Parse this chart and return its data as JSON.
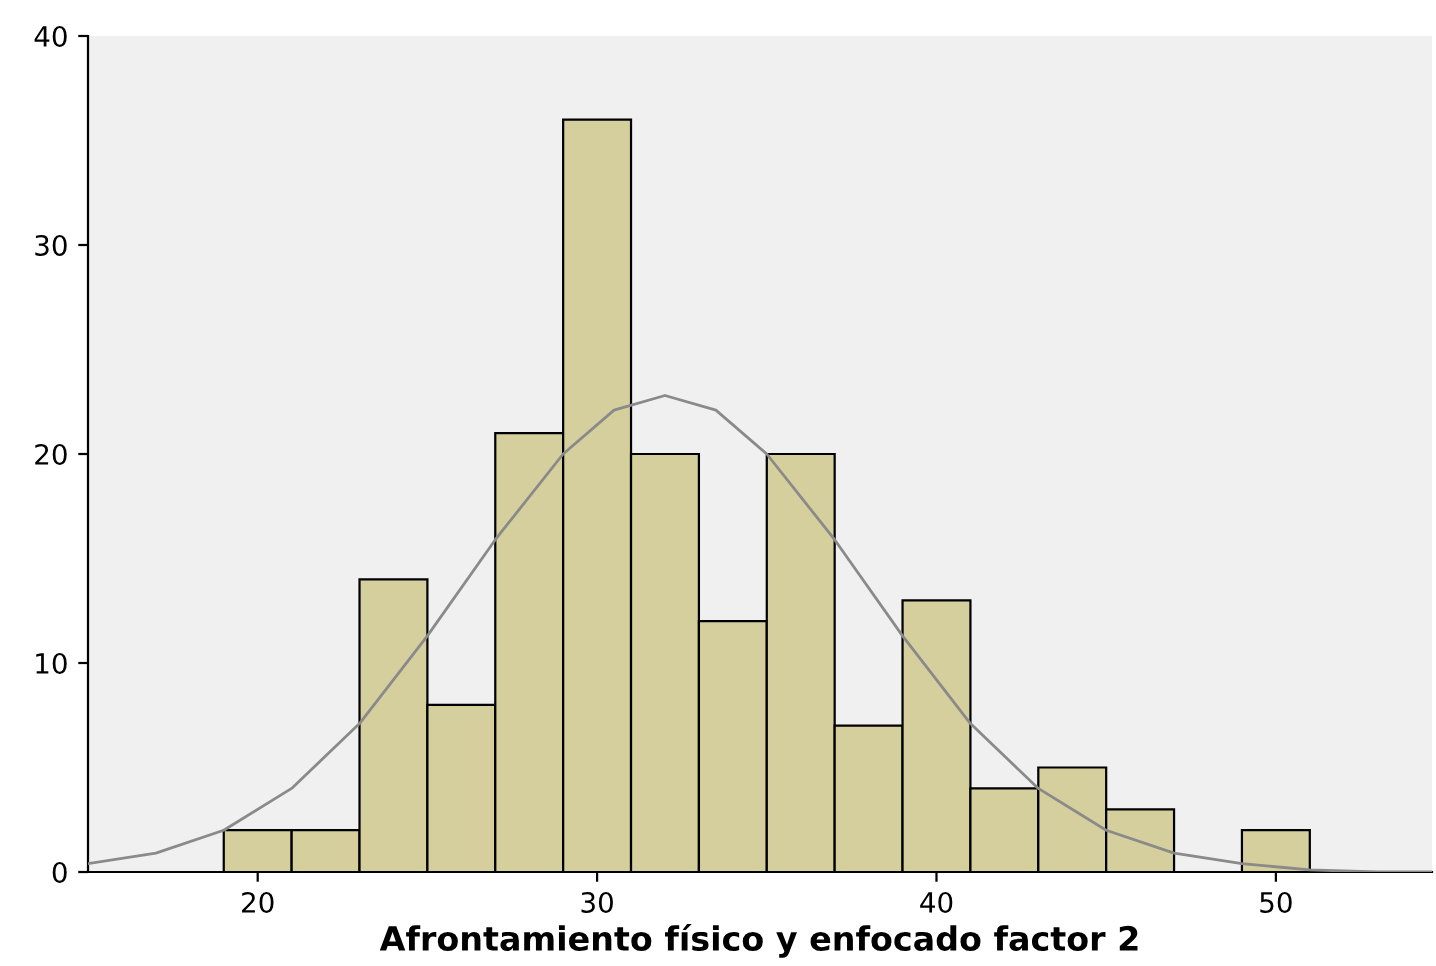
{
  "chart_data": {
    "type": "histogram",
    "xlabel": "Afrontamiento físico y enfocado factor 2",
    "bins": [
      19,
      21,
      23,
      25,
      27,
      29,
      31,
      33,
      35,
      37,
      39,
      41,
      43,
      45,
      47,
      49,
      51
    ],
    "values": [
      2,
      2,
      14,
      8,
      21,
      36,
      20,
      12,
      20,
      7,
      13,
      4,
      5,
      3,
      0,
      2
    ],
    "color": "#d4cf9c",
    "series": [
      {
        "type": "line",
        "color": "#8a8a8a",
        "x": [
          15,
          17,
          19,
          21,
          23,
          25,
          27,
          29,
          30.5,
          32,
          33.5,
          35,
          37,
          39,
          41,
          43,
          45,
          47,
          49,
          51,
          53,
          54.6
        ],
        "values": [
          0.4,
          0.9,
          2.0,
          4.0,
          7.1,
          11.3,
          15.9,
          20.0,
          22.1,
          22.8,
          22.1,
          20.0,
          15.9,
          11.3,
          7.1,
          4.0,
          2.0,
          0.9,
          0.4,
          0.1,
          0.0,
          0.0
        ]
      }
    ],
    "xlim": [
      15,
      54.6
    ],
    "ylim": [
      0,
      40
    ],
    "xticks": [
      20,
      30,
      40,
      50
    ],
    "yticks": [
      0,
      10,
      20,
      30,
      40
    ],
    "grid": false
  }
}
